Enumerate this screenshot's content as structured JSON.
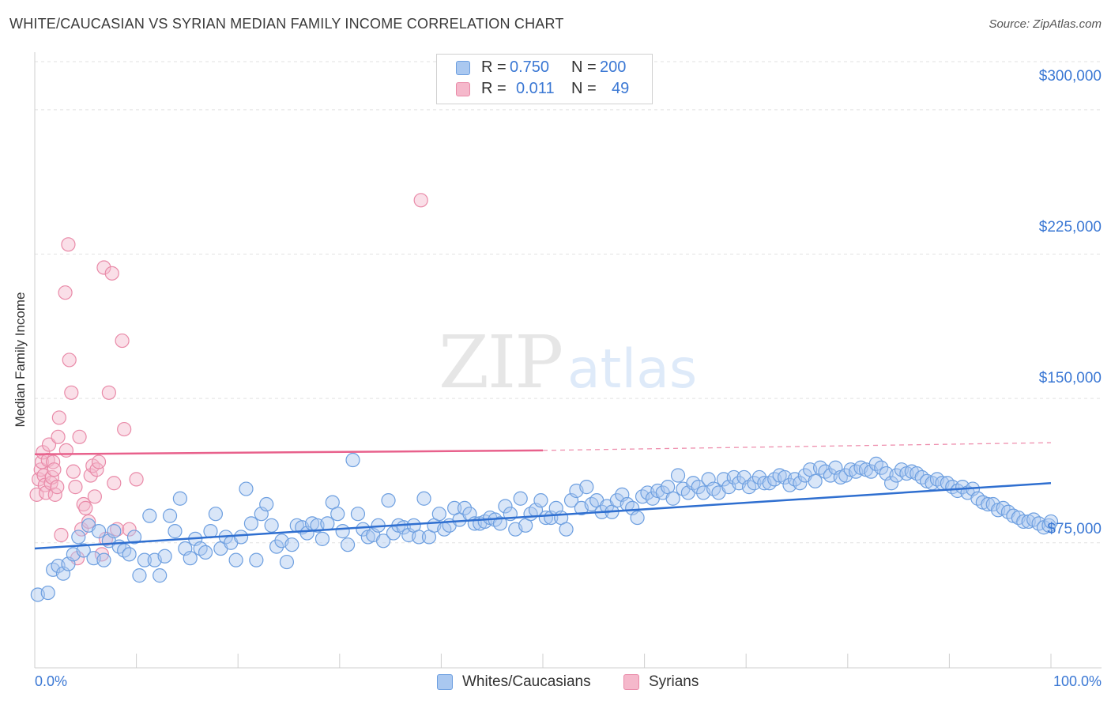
{
  "header": {
    "title": "WHITE/CAUCASIAN VS SYRIAN MEDIAN FAMILY INCOME CORRELATION CHART",
    "source": "Source: ZipAtlas.com"
  },
  "legend": {
    "rows": [
      {
        "r_label": "R =",
        "r_value": "0.750",
        "n_label": "N =",
        "n_value": "200"
      },
      {
        "r_label": "R =",
        "r_value": "0.011",
        "n_label": "N =",
        "n_value": "49"
      }
    ]
  },
  "bottom_legend": {
    "items": [
      {
        "label": "Whites/Caucasians"
      },
      {
        "label": "Syrians"
      }
    ]
  },
  "colors": {
    "blue_fill": "#aac8f0",
    "blue_stroke": "#6d9fe0",
    "blue_line": "#2f6fd0",
    "pink_fill": "#f5b8cb",
    "pink_stroke": "#e98aa8",
    "pink_line": "#e8618c",
    "tick_text": "#3b78d4",
    "grid": "#e2e2e2"
  },
  "axes": {
    "ylabel": "Median Family Income",
    "x_min_label": "0.0%",
    "x_max_label": "100.0%",
    "y_tick_labels": [
      "$300,000",
      "$225,000",
      "$150,000",
      "$75,000"
    ]
  },
  "chart_data": {
    "type": "scatter",
    "title": "WHITE/CAUCASIAN VS SYRIAN MEDIAN FAMILY INCOME CORRELATION CHART",
    "xlabel": "",
    "ylabel": "Median Family Income",
    "xlim": [
      0,
      100
    ],
    "ylim": [
      10000,
      325000
    ],
    "y_ticks": [
      75000,
      150000,
      225000,
      300000
    ],
    "grid": true,
    "legend_position": "top-center",
    "series": [
      {
        "name": "Whites/Caucasians",
        "color": "#6d9fe0",
        "R": 0.75,
        "N": 200,
        "trend": {
          "x": [
            0,
            100
          ],
          "y": [
            72000,
            106000
          ]
        },
        "points": [
          [
            0.3,
            48000
          ],
          [
            1.3,
            49000
          ],
          [
            1.8,
            61000
          ],
          [
            2.3,
            63000
          ],
          [
            2.8,
            59000
          ],
          [
            3.3,
            64000
          ],
          [
            3.8,
            69000
          ],
          [
            4.3,
            78000
          ],
          [
            4.8,
            71000
          ],
          [
            5.3,
            84000
          ],
          [
            5.8,
            67000
          ],
          [
            6.3,
            81000
          ],
          [
            6.8,
            66000
          ],
          [
            7.3,
            76000
          ],
          [
            7.8,
            81000
          ],
          [
            8.3,
            73000
          ],
          [
            8.8,
            71000
          ],
          [
            9.3,
            69000
          ],
          [
            9.8,
            78000
          ],
          [
            10.3,
            58000
          ],
          [
            10.8,
            66000
          ],
          [
            11.3,
            89000
          ],
          [
            11.8,
            66000
          ],
          [
            12.3,
            58000
          ],
          [
            12.8,
            68000
          ],
          [
            13.3,
            89000
          ],
          [
            13.8,
            81000
          ],
          [
            14.3,
            98000
          ],
          [
            14.8,
            72000
          ],
          [
            15.3,
            67000
          ],
          [
            15.8,
            77000
          ],
          [
            16.3,
            72000
          ],
          [
            16.8,
            70000
          ],
          [
            17.3,
            81000
          ],
          [
            17.8,
            90000
          ],
          [
            18.3,
            72000
          ],
          [
            18.8,
            78000
          ],
          [
            19.3,
            75000
          ],
          [
            19.8,
            66000
          ],
          [
            20.3,
            78000
          ],
          [
            20.8,
            103000
          ],
          [
            21.3,
            85000
          ],
          [
            21.8,
            66000
          ],
          [
            22.3,
            90000
          ],
          [
            22.8,
            95000
          ],
          [
            23.3,
            84000
          ],
          [
            23.8,
            73000
          ],
          [
            24.3,
            76000
          ],
          [
            24.8,
            65000
          ],
          [
            25.3,
            74000
          ],
          [
            25.8,
            84000
          ],
          [
            26.3,
            83000
          ],
          [
            26.8,
            80000
          ],
          [
            27.3,
            85000
          ],
          [
            27.8,
            84000
          ],
          [
            28.3,
            77000
          ],
          [
            28.8,
            85000
          ],
          [
            29.3,
            96000
          ],
          [
            29.8,
            90000
          ],
          [
            30.3,
            81000
          ],
          [
            30.8,
            74000
          ],
          [
            31.3,
            118000
          ],
          [
            31.8,
            90000
          ],
          [
            32.3,
            82000
          ],
          [
            32.8,
            78000
          ],
          [
            33.3,
            79000
          ],
          [
            33.8,
            84000
          ],
          [
            34.3,
            76000
          ],
          [
            34.8,
            97000
          ],
          [
            35.3,
            80000
          ],
          [
            35.8,
            84000
          ],
          [
            36.3,
            83000
          ],
          [
            36.8,
            79000
          ],
          [
            37.3,
            84000
          ],
          [
            37.8,
            78000
          ],
          [
            38.3,
            98000
          ],
          [
            38.8,
            78000
          ],
          [
            39.3,
            84000
          ],
          [
            39.8,
            90000
          ],
          [
            40.3,
            82000
          ],
          [
            40.8,
            84000
          ],
          [
            41.3,
            93000
          ],
          [
            41.8,
            87000
          ],
          [
            42.3,
            93000
          ],
          [
            42.8,
            90000
          ],
          [
            43.3,
            85000
          ],
          [
            43.8,
            85000
          ],
          [
            44.3,
            86000
          ],
          [
            44.8,
            88000
          ],
          [
            45.3,
            87000
          ],
          [
            45.8,
            85000
          ],
          [
            46.3,
            94000
          ],
          [
            46.8,
            90000
          ],
          [
            47.3,
            82000
          ],
          [
            47.8,
            98000
          ],
          [
            48.3,
            84000
          ],
          [
            48.8,
            90000
          ],
          [
            49.3,
            92000
          ],
          [
            49.8,
            97000
          ],
          [
            50.3,
            88000
          ],
          [
            50.8,
            88000
          ],
          [
            51.3,
            93000
          ],
          [
            51.8,
            88000
          ],
          [
            52.3,
            82000
          ],
          [
            52.8,
            97000
          ],
          [
            53.3,
            102000
          ],
          [
            53.8,
            93000
          ],
          [
            54.3,
            104000
          ],
          [
            54.8,
            95000
          ],
          [
            55.3,
            97000
          ],
          [
            55.8,
            91000
          ],
          [
            56.3,
            94000
          ],
          [
            56.8,
            91000
          ],
          [
            57.3,
            97000
          ],
          [
            57.8,
            100000
          ],
          [
            58.3,
            95000
          ],
          [
            58.8,
            93000
          ],
          [
            59.3,
            88000
          ],
          [
            59.8,
            99000
          ],
          [
            60.3,
            101000
          ],
          [
            60.8,
            98000
          ],
          [
            61.3,
            102000
          ],
          [
            61.8,
            101000
          ],
          [
            62.3,
            104000
          ],
          [
            62.8,
            98000
          ],
          [
            63.3,
            110000
          ],
          [
            63.8,
            103000
          ],
          [
            64.3,
            101000
          ],
          [
            64.8,
            106000
          ],
          [
            65.3,
            104000
          ],
          [
            65.8,
            101000
          ],
          [
            66.3,
            108000
          ],
          [
            66.8,
            103000
          ],
          [
            67.3,
            101000
          ],
          [
            67.8,
            108000
          ],
          [
            68.3,
            104000
          ],
          [
            68.8,
            109000
          ],
          [
            69.3,
            106000
          ],
          [
            69.8,
            109000
          ],
          [
            70.3,
            104000
          ],
          [
            70.8,
            106000
          ],
          [
            71.3,
            109000
          ],
          [
            71.8,
            106000
          ],
          [
            72.3,
            106000
          ],
          [
            72.8,
            108000
          ],
          [
            73.3,
            110000
          ],
          [
            73.8,
            109000
          ],
          [
            74.3,
            105000
          ],
          [
            74.8,
            108000
          ],
          [
            75.3,
            106000
          ],
          [
            75.8,
            110000
          ],
          [
            76.3,
            113000
          ],
          [
            76.8,
            107000
          ],
          [
            77.3,
            114000
          ],
          [
            77.8,
            112000
          ],
          [
            78.3,
            110000
          ],
          [
            78.8,
            114000
          ],
          [
            79.3,
            109000
          ],
          [
            79.8,
            110000
          ],
          [
            80.3,
            113000
          ],
          [
            80.8,
            112000
          ],
          [
            81.3,
            114000
          ],
          [
            81.8,
            113000
          ],
          [
            82.3,
            112000
          ],
          [
            82.8,
            116000
          ],
          [
            83.3,
            114000
          ],
          [
            83.8,
            111000
          ],
          [
            84.3,
            106000
          ],
          [
            84.8,
            110000
          ],
          [
            85.3,
            113000
          ],
          [
            85.8,
            111000
          ],
          [
            86.3,
            112000
          ],
          [
            86.8,
            111000
          ],
          [
            87.3,
            109000
          ],
          [
            87.8,
            107000
          ],
          [
            88.3,
            106000
          ],
          [
            88.8,
            108000
          ],
          [
            89.3,
            106000
          ],
          [
            89.8,
            106000
          ],
          [
            90.3,
            104000
          ],
          [
            90.8,
            102000
          ],
          [
            91.3,
            104000
          ],
          [
            91.8,
            101000
          ],
          [
            92.3,
            103000
          ],
          [
            92.8,
            98000
          ],
          [
            93.3,
            96000
          ],
          [
            93.8,
            95000
          ],
          [
            94.3,
            95000
          ],
          [
            94.8,
            92000
          ],
          [
            95.3,
            93000
          ],
          [
            95.8,
            91000
          ],
          [
            96.3,
            89000
          ],
          [
            96.8,
            88000
          ],
          [
            97.3,
            86000
          ],
          [
            97.8,
            86000
          ],
          [
            98.3,
            87000
          ],
          [
            98.8,
            85000
          ],
          [
            99.3,
            83000
          ],
          [
            99.8,
            84000
          ],
          [
            100.0,
            86000
          ]
        ]
      },
      {
        "name": "Syrians",
        "color": "#e98aa8",
        "R": 0.011,
        "N": 49,
        "trend": {
          "x": [
            0,
            50
          ],
          "y": [
            121000,
            123000
          ]
        },
        "trend_dashed": {
          "x": [
            50,
            100
          ],
          "y": [
            123000,
            127000
          ]
        },
        "points": [
          [
            0.2,
            100000
          ],
          [
            0.4,
            108000
          ],
          [
            0.6,
            113000
          ],
          [
            0.7,
            117000
          ],
          [
            0.8,
            122000
          ],
          [
            0.9,
            110000
          ],
          [
            1.0,
            105000
          ],
          [
            1.1,
            101000
          ],
          [
            1.3,
            118000
          ],
          [
            1.4,
            126000
          ],
          [
            1.6,
            106000
          ],
          [
            1.7,
            109000
          ],
          [
            1.8,
            117000
          ],
          [
            1.9,
            113000
          ],
          [
            2.0,
            100000
          ],
          [
            2.2,
            104000
          ],
          [
            2.3,
            130000
          ],
          [
            2.4,
            140000
          ],
          [
            2.6,
            79000
          ],
          [
            3.0,
            205000
          ],
          [
            3.1,
            123000
          ],
          [
            3.3,
            230000
          ],
          [
            3.4,
            170000
          ],
          [
            3.6,
            153000
          ],
          [
            3.8,
            112000
          ],
          [
            4.0,
            104000
          ],
          [
            4.2,
            67000
          ],
          [
            4.4,
            130000
          ],
          [
            4.6,
            82000
          ],
          [
            4.8,
            95000
          ],
          [
            5.0,
            93000
          ],
          [
            5.3,
            86000
          ],
          [
            5.5,
            110000
          ],
          [
            5.7,
            115000
          ],
          [
            5.9,
            99000
          ],
          [
            6.1,
            113000
          ],
          [
            6.3,
            117000
          ],
          [
            6.6,
            69000
          ],
          [
            6.8,
            218000
          ],
          [
            7.0,
            77000
          ],
          [
            7.3,
            153000
          ],
          [
            7.6,
            215000
          ],
          [
            7.8,
            106000
          ],
          [
            8.1,
            82000
          ],
          [
            8.6,
            180000
          ],
          [
            8.8,
            134000
          ],
          [
            9.3,
            82000
          ],
          [
            10.0,
            108000
          ],
          [
            38.0,
            253000
          ]
        ]
      }
    ]
  }
}
